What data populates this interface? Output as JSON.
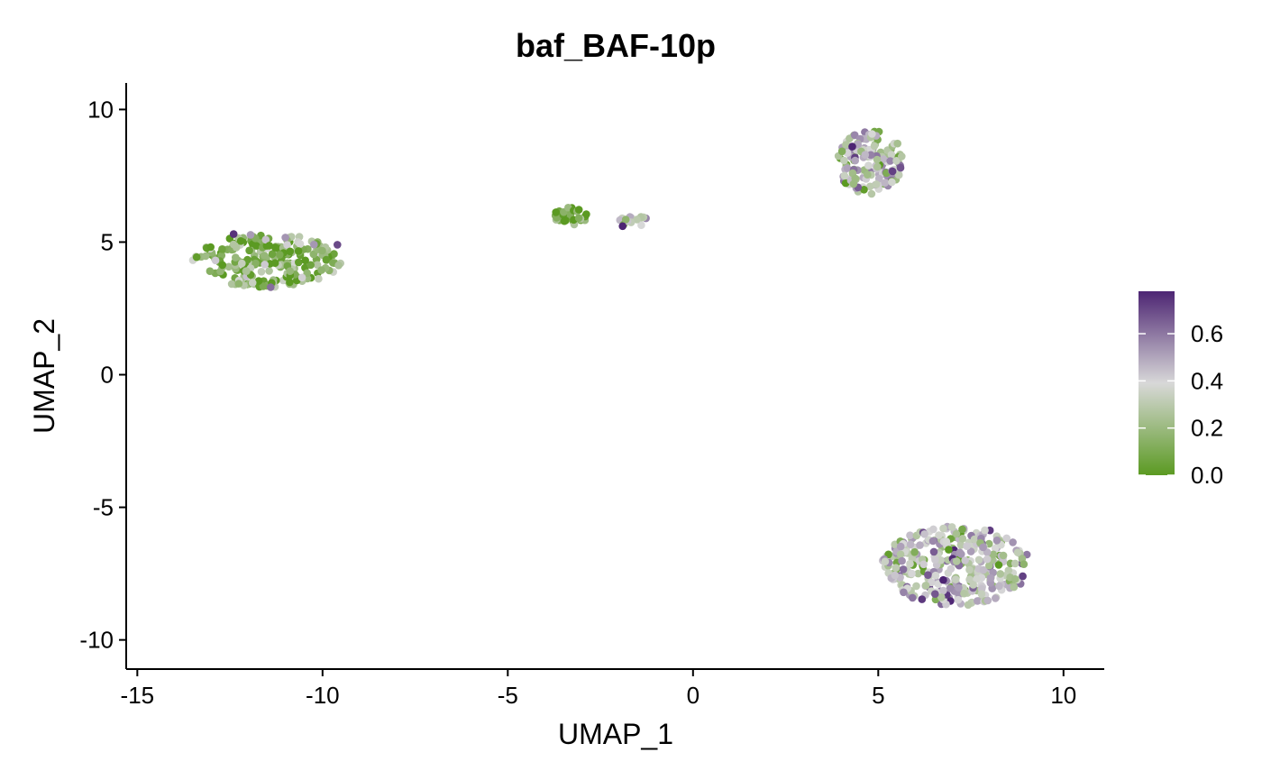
{
  "chart_data": {
    "type": "scatter",
    "title": "baf_BAF-10p",
    "xlabel": "UMAP_1",
    "ylabel": "UMAP_2",
    "xlim": [
      -15.3,
      11.1
    ],
    "ylim": [
      -11.1,
      11.0
    ],
    "x_ticks": [
      -15,
      -10,
      -5,
      0,
      5,
      10
    ],
    "x_tick_labels": [
      "-15",
      "-10",
      "-5",
      "0",
      "5",
      "10"
    ],
    "y_ticks": [
      10,
      5,
      0,
      -5,
      -10
    ],
    "y_tick_labels": [
      "10",
      "5",
      "0",
      "-5",
      "-10"
    ],
    "grid": false,
    "legend": {
      "type": "colorbar",
      "placement": "right",
      "range": [
        0.0,
        0.78
      ],
      "ticks": [
        0.0,
        0.2,
        0.4,
        0.6
      ],
      "tick_labels": [
        "0.0",
        "0.2",
        "0.4",
        "0.6"
      ],
      "colors": {
        "low": "#5B9A22",
        "mid": "#D8D8D8",
        "high": "#4D2573"
      }
    },
    "clusters": [
      {
        "center": [
          -11.5,
          4.3
        ],
        "spread": [
          2.0,
          1.0
        ],
        "count": 230,
        "mean_value": 0.15
      },
      {
        "center": [
          -3.3,
          6.0
        ],
        "spread": [
          0.45,
          0.35
        ],
        "count": 30,
        "mean_value": 0.12
      },
      {
        "center": [
          -1.6,
          5.8
        ],
        "spread": [
          0.4,
          0.2
        ],
        "count": 16,
        "mean_value": 0.3
      },
      {
        "center": [
          4.8,
          8.0
        ],
        "spread": [
          0.9,
          1.2
        ],
        "count": 150,
        "mean_value": 0.38
      },
      {
        "center": [
          7.1,
          -7.2
        ],
        "spread": [
          2.0,
          1.5
        ],
        "count": 330,
        "mean_value": 0.38
      }
    ],
    "highlighted_points": [
      {
        "x": -9.6,
        "y": 4.9,
        "value": 0.7
      },
      {
        "x": -11.4,
        "y": 3.3,
        "value": 0.62
      },
      {
        "x": -12.4,
        "y": 5.3,
        "value": 0.75
      },
      {
        "x": -1.9,
        "y": 5.6,
        "value": 0.78
      },
      {
        "x": 4.3,
        "y": 8.6,
        "value": 0.78
      },
      {
        "x": 5.6,
        "y": 7.8,
        "value": 0.68
      },
      {
        "x": 6.9,
        "y": -6.6,
        "value": 0.0
      },
      {
        "x": 8.9,
        "y": -7.6,
        "value": 0.72
      }
    ]
  }
}
